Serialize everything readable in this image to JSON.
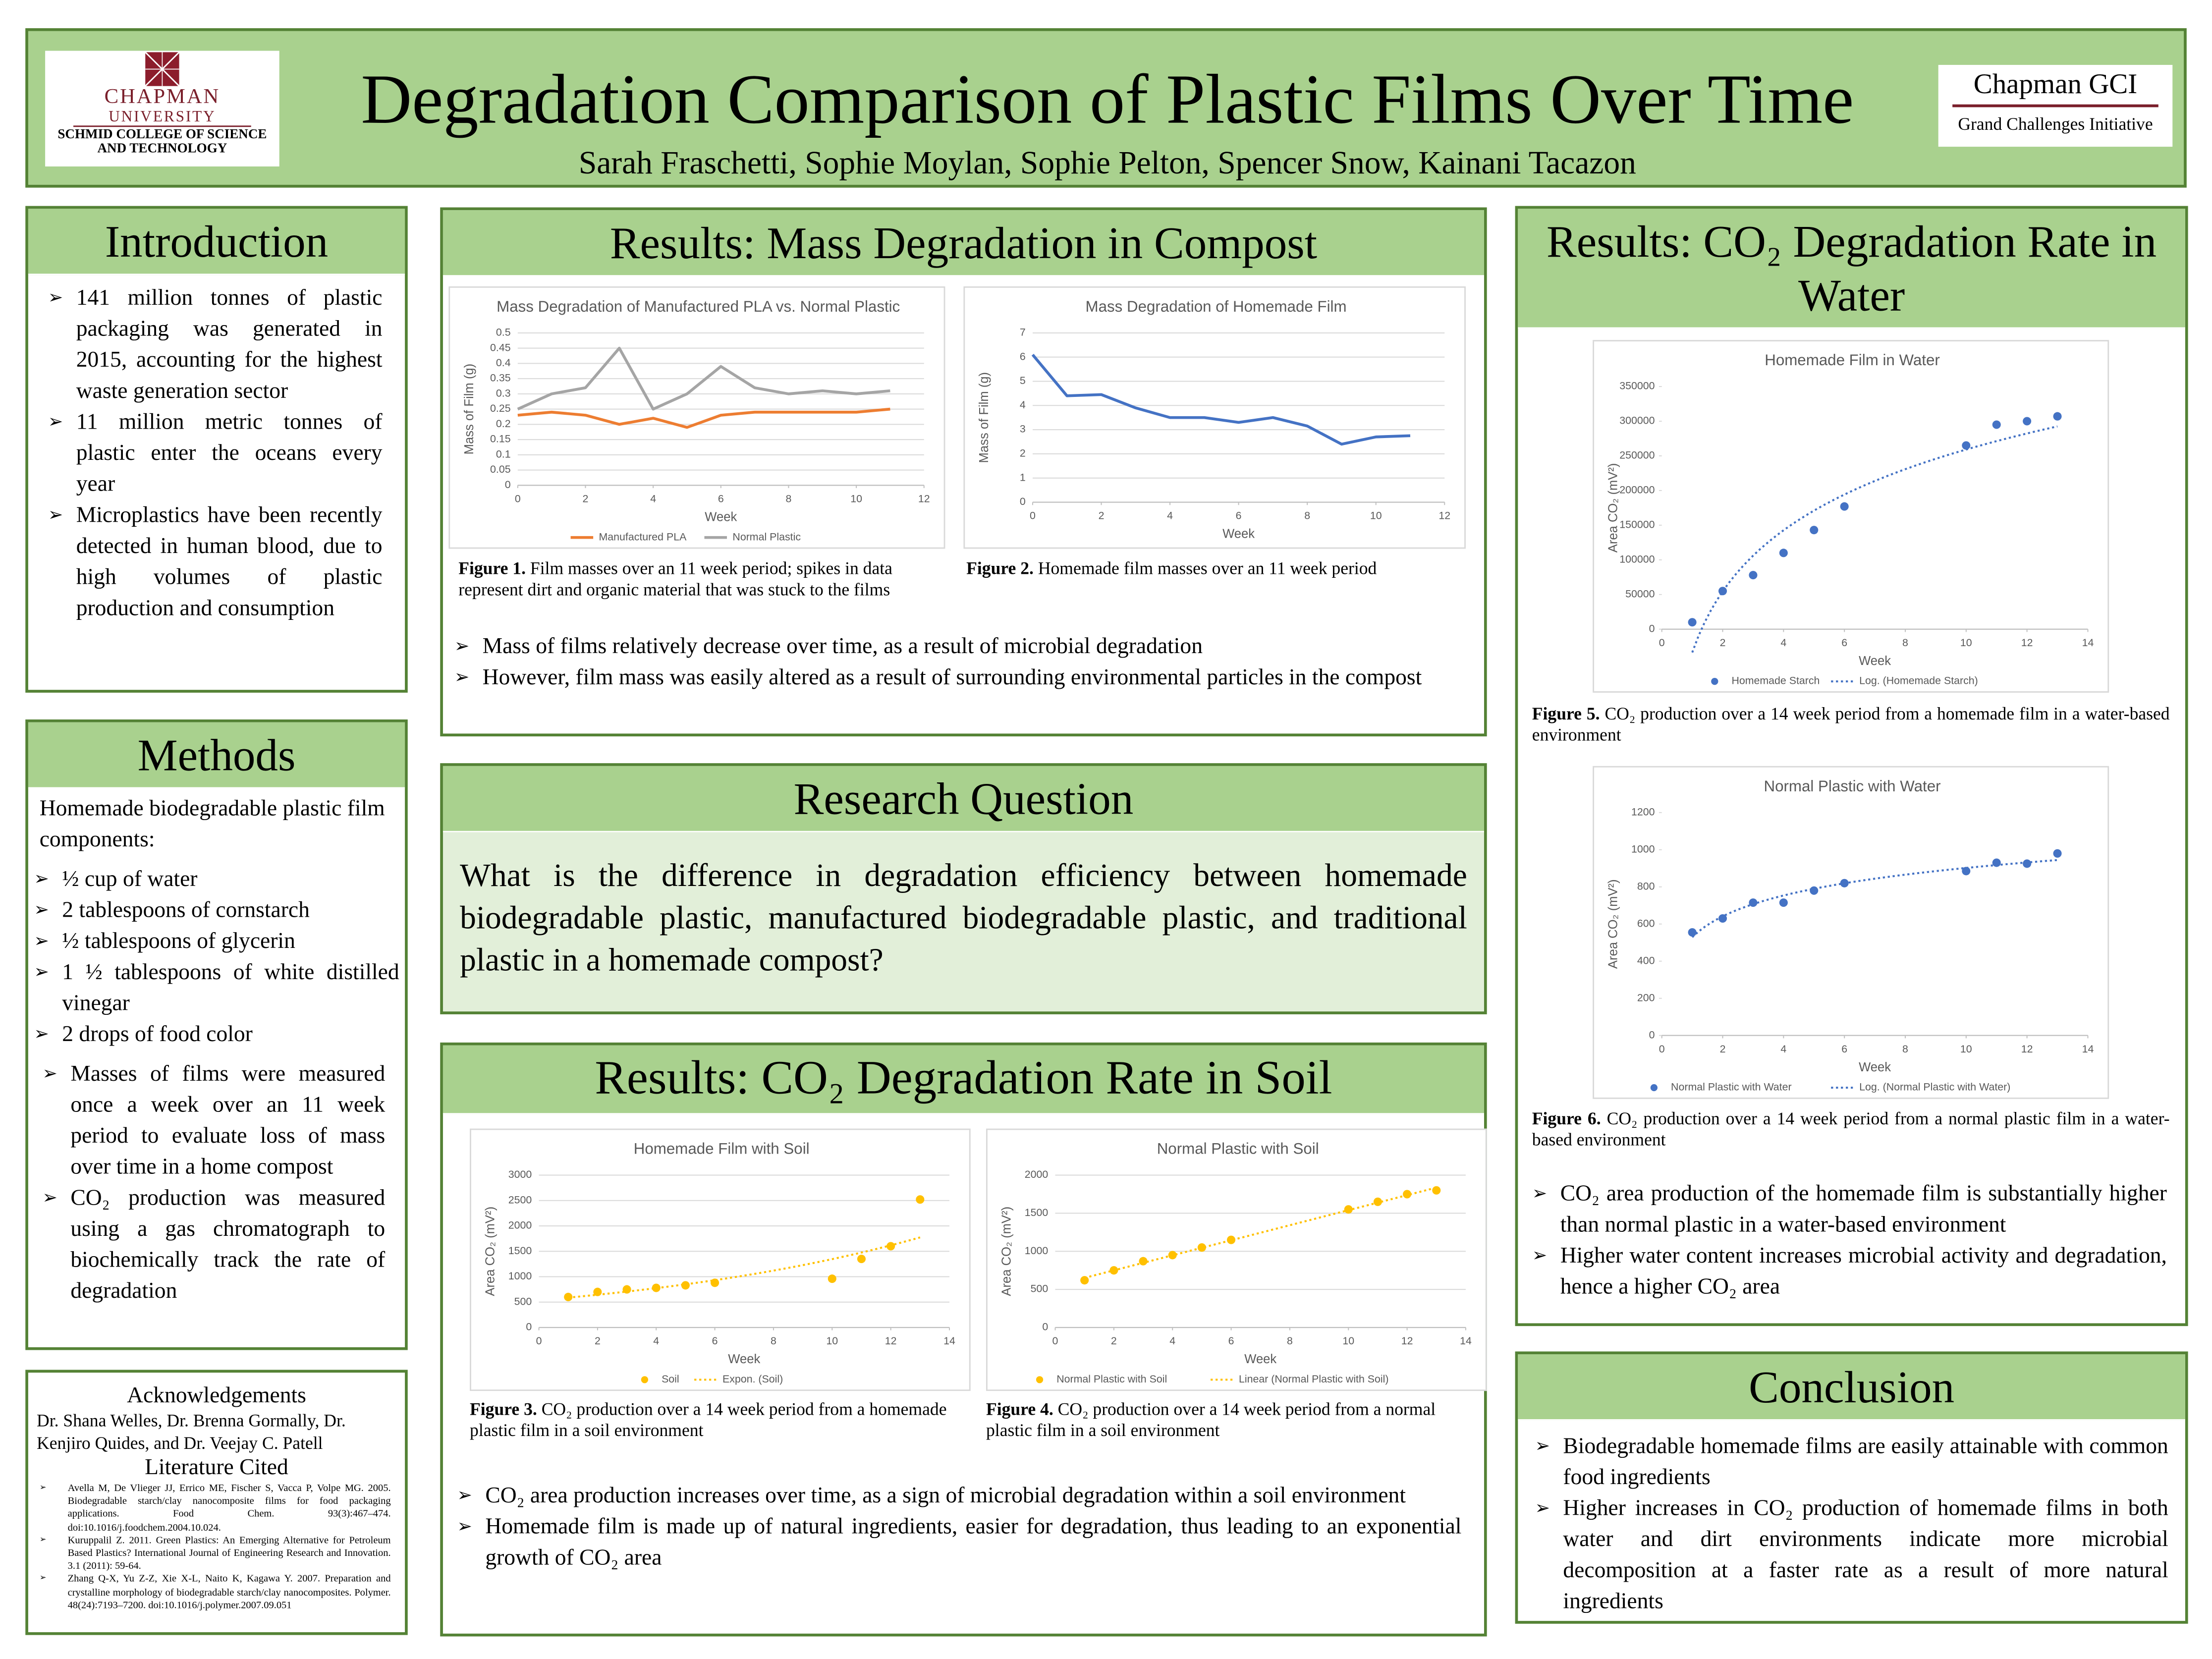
{
  "header": {
    "title": "Degradation Comparison of Plastic Films Over Time",
    "authors": "Sarah Fraschetti, Sophie Moylan, Sophie Pelton, Spencer Snow, Kainani Tacazon",
    "logo_left": {
      "name": "CHAPMAN",
      "sub": "UNIVERSITY",
      "college": "SCHMID COLLEGE OF SCIENCE AND TECHNOLOGY"
    },
    "logo_right": {
      "name": "Chapman GCI",
      "sub": "Grand Challenges Initiative"
    }
  },
  "introduction": {
    "title": "Introduction",
    "bullets": [
      "141 million tonnes of plastic packaging was generated in 2015, accounting for the highest waste generation sector",
      "11 million metric tonnes of plastic enter the oceans every year",
      "Microplastics have been recently detected in human blood, due to high volumes of plastic production and consumption"
    ]
  },
  "methods": {
    "title": "Methods",
    "intro": "Homemade biodegradable plastic film components:",
    "components": [
      "½ cup of water",
      "2 tablespoons of cornstarch",
      "½ tablespoons of glycerin",
      "1 ½ tablespoons of white distilled vinegar",
      "2 drops of food color"
    ],
    "bullets": [
      "Masses of films were measured once a week over an 11 week period to evaluate loss of mass over time in a home compost",
      "CO₂ production was measured using a gas chromatograph to biochemically track the rate of degradation"
    ]
  },
  "acknowledgements": {
    "title": "Acknowledgements",
    "text": "Dr. Shana Welles, Dr. Brenna Gormally, Dr. Kenjiro Quides, and Dr. Veejay C. Patell"
  },
  "literature": {
    "title": "Literature Cited",
    "refs": [
      "Avella M, De Vlieger JJ, Errico ME, Fischer S, Vacca P, Volpe MG. 2005. Biodegradable starch/clay nanocomposite films for food packaging applications. Food Chem. 93(3):467–474. doi:10.1016/j.foodchem.2004.10.024.",
      "Kuruppalil Z. 2011. Green Plastics: An Emerging Alternative for Petroleum Based Plastics? International Journal of Engineering Research and Innovation. 3.1 (2011): 59-64.",
      "Zhang Q-X, Yu Z-Z, Xie X-L, Naito K, Kagawa Y. 2007. Preparation and crystalline morphology of biodegradable starch/clay nanocomposites. Polymer. 48(24):7193–7200. doi:10.1016/j.polymer.2007.09.051"
    ]
  },
  "mass_results": {
    "title": "Results: Mass Degradation in Compost",
    "captions": [
      {
        "label": "Figure 1.",
        "text": "Film masses over an 11 week period; spikes in data represent dirt and organic material that was stuck to the films"
      },
      {
        "label": "Figure 2.",
        "text": "Homemade film masses over an 11 week period"
      }
    ],
    "bullets": [
      "Mass of films relatively decrease over time, as a result of microbial degradation",
      "However, film mass was easily altered as a result of surrounding environmental particles in the compost"
    ]
  },
  "research_question": {
    "title": "Research Question",
    "text": "What is the difference in degradation efficiency between homemade biodegradable plastic, manufactured biodegradable plastic, and traditional plastic in a homemade compost?"
  },
  "soil_results": {
    "title": "Results: CO₂ Degradation Rate in Soil",
    "captions": [
      {
        "label": "Figure 3.",
        "text": "CO₂ production over a 14 week period from a homemade plastic film in a soil environment"
      },
      {
        "label": "Figure 4.",
        "text": "CO₂ production over a 14 week period from a normal plastic film in a soil environment"
      }
    ],
    "bullets": [
      "CO₂ area production increases over time, as a sign of microbial degradation within a soil environment",
      "Homemade film is made up of natural ingredients, easier for degradation, thus leading to an exponential growth of CO₂ area"
    ]
  },
  "water_results": {
    "title": "Results: CO₂ Degradation Rate in Water",
    "captions": [
      {
        "label": "Figure 5.",
        "text": "CO₂ production over a 14 week period from a homemade film in a water-based environment"
      },
      {
        "label": "Figure 6.",
        "text": "CO₂ production over a 14 week period from a normal plastic film in a water-based environment"
      }
    ],
    "bullets": [
      "CO₂ area production of the homemade film is substantially higher than normal plastic in a water-based environment",
      "Higher water content increases microbial activity and degradation, hence a higher CO₂ area"
    ]
  },
  "conclusion": {
    "title": "Conclusion",
    "bullets": [
      "Biodegradable homemade films are easily attainable with common food ingredients",
      "Higher increases in CO₂ production of homemade films in both water and dirt environments indicate more microbial decomposition at a faster rate as a result of more natural ingredients"
    ]
  },
  "chart_data": [
    {
      "type": "line",
      "title": "Mass Degradation of Manufactured PLA vs. Normal Plastic",
      "x_label": "Week",
      "y_label": "Mass of Film (g)",
      "x": [
        0,
        1,
        2,
        3,
        4,
        5,
        6,
        7,
        8,
        9,
        10,
        11
      ],
      "series": [
        {
          "name": "Manufactured PLA",
          "color": "#ed7d31",
          "values": [
            0.23,
            0.24,
            0.23,
            0.2,
            0.22,
            0.19,
            0.23,
            0.24,
            0.24,
            0.24,
            0.24,
            0.25
          ]
        },
        {
          "name": "Normal Plastic",
          "color": "#a5a5a5",
          "values": [
            0.25,
            0.3,
            0.32,
            0.45,
            0.25,
            0.3,
            0.39,
            0.32,
            0.3,
            0.31,
            0.3,
            0.31
          ]
        }
      ],
      "xlim": [
        0,
        12
      ],
      "xticks": [
        0,
        2,
        4,
        6,
        8,
        10,
        12
      ],
      "ylim": [
        0,
        0.5
      ],
      "yticks": [
        0,
        0.05,
        0.1,
        0.15,
        0.2,
        0.25,
        0.3,
        0.35,
        0.4,
        0.45,
        0.5
      ],
      "grid": true,
      "legend": "bottom"
    },
    {
      "type": "line",
      "title": "Mass Degradation of Homemade Film",
      "x_label": "Week",
      "y_label": "Mass of Film (g)",
      "x": [
        0,
        1,
        2,
        3,
        4,
        5,
        6,
        7,
        8,
        9,
        10,
        11
      ],
      "series": [
        {
          "color": "#4472c4",
          "values": [
            6.1,
            4.4,
            4.45,
            3.9,
            3.5,
            3.5,
            3.3,
            3.5,
            3.15,
            2.4,
            2.7,
            2.75
          ]
        }
      ],
      "xlim": [
        0,
        12
      ],
      "xticks": [
        0,
        2,
        4,
        6,
        8,
        10,
        12
      ],
      "ylim": [
        0,
        7
      ],
      "yticks": [
        0,
        1,
        2,
        3,
        4,
        5,
        6,
        7
      ],
      "grid": true
    },
    {
      "type": "scatter",
      "title": "Homemade Film with Soil",
      "x_label": "Week",
      "y_label": "Area CO₂ (mV²)",
      "x": [
        1,
        2,
        3,
        4,
        5,
        6,
        10,
        11,
        12,
        13
      ],
      "series": [
        {
          "name": "Soil",
          "color": "#ffc000",
          "values": [
            600,
            700,
            750,
            780,
            830,
            880,
            960,
            1350,
            1600,
            2520
          ],
          "trendline": {
            "name": "Expon. (Soil)",
            "kind": "exponential"
          }
        }
      ],
      "xlim": [
        0,
        14
      ],
      "xticks": [
        0,
        2,
        4,
        6,
        8,
        10,
        12,
        14
      ],
      "ylim": [
        0,
        3000
      ],
      "yticks": [
        0,
        500,
        1000,
        1500,
        2000,
        2500,
        3000
      ],
      "grid": true,
      "legend": "bottom"
    },
    {
      "type": "scatter",
      "title": "Normal Plastic with Soil",
      "x_label": "Week",
      "y_label": "Area CO₂ (mV²)",
      "x": [
        1,
        2,
        3,
        4,
        5,
        6,
        10,
        11,
        12,
        13
      ],
      "series": [
        {
          "name": "Normal Plastic with Soil",
          "color": "#ffc000",
          "values": [
            620,
            750,
            870,
            950,
            1050,
            1150,
            1550,
            1650,
            1750,
            1800
          ],
          "trendline": {
            "name": "Linear (Normal Plastic with Soil)",
            "kind": "linear"
          }
        }
      ],
      "xlim": [
        0,
        14
      ],
      "xticks": [
        0,
        2,
        4,
        6,
        8,
        10,
        12,
        14
      ],
      "ylim": [
        0,
        2000
      ],
      "yticks": [
        0,
        500,
        1000,
        1500,
        2000
      ],
      "grid": true,
      "legend": "bottom"
    },
    {
      "type": "scatter",
      "title": "Homemade Film in Water",
      "x_label": "Week",
      "y_label": "Area CO₂ (mV²)",
      "x": [
        1,
        2,
        3,
        4,
        5,
        6,
        10,
        11,
        12,
        13
      ],
      "series": [
        {
          "name": "Homemade Starch",
          "color": "#4472c4",
          "values": [
            10000,
            55000,
            78000,
            110000,
            143000,
            177000,
            265000,
            295000,
            300000,
            307000
          ],
          "trendline": {
            "name": "Log. (Homemade Starch)",
            "kind": "log"
          }
        }
      ],
      "xlim": [
        0,
        14
      ],
      "xticks": [
        0,
        2,
        4,
        6,
        8,
        10,
        12,
        14
      ],
      "ylim": [
        0,
        350000
      ],
      "yticks": [
        0,
        50000,
        100000,
        150000,
        200000,
        250000,
        300000,
        350000
      ],
      "grid": false,
      "legend": "bottom"
    },
    {
      "type": "scatter",
      "title": "Normal Plastic with Water",
      "x_label": "Week",
      "y_label": "Area CO₂ (mV²)",
      "x": [
        1,
        2,
        3,
        4,
        5,
        6,
        10,
        11,
        12,
        13
      ],
      "series": [
        {
          "name": "Normal Plastic with Water",
          "color": "#4472c4",
          "values": [
            555,
            630,
            715,
            715,
            780,
            820,
            885,
            930,
            925,
            980
          ],
          "trendline": {
            "name": "Log. (Normal Plastic with Water)",
            "kind": "log"
          }
        }
      ],
      "xlim": [
        0,
        14
      ],
      "xticks": [
        0,
        2,
        4,
        6,
        8,
        10,
        12,
        14
      ],
      "ylim": [
        0,
        1200
      ],
      "yticks": [
        0,
        200,
        400,
        600,
        800,
        1000,
        1200
      ],
      "grid": false,
      "legend": "bottom"
    }
  ]
}
